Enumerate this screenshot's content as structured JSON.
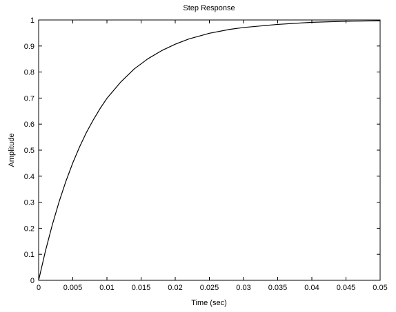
{
  "chart_data": {
    "type": "line",
    "title": "Step Response",
    "xlabel": "Time (sec)",
    "ylabel": "Amplitude",
    "xlim": [
      0,
      0.05
    ],
    "ylim": [
      0,
      1
    ],
    "x_ticks": [
      "0",
      "0.005",
      "0.01",
      "0.015",
      "0.02",
      "0.025",
      "0.03",
      "0.035",
      "0.04",
      "0.045",
      "0.05"
    ],
    "y_ticks": [
      "0",
      "0.1",
      "0.2",
      "0.3",
      "0.4",
      "0.5",
      "0.6",
      "0.7",
      "0.8",
      "0.9",
      "1"
    ],
    "grid": false,
    "legend": "none",
    "series": [
      {
        "color": "#000000",
        "x": [
          0,
          0.001,
          0.002,
          0.003,
          0.004,
          0.005,
          0.006,
          0.007,
          0.008,
          0.009,
          0.01,
          0.012,
          0.014,
          0.016,
          0.018,
          0.02,
          0.022,
          0.025,
          0.028,
          0.03,
          0.035,
          0.04,
          0.045,
          0.05
        ],
        "y": [
          0,
          0.113,
          0.213,
          0.302,
          0.381,
          0.451,
          0.513,
          0.568,
          0.616,
          0.66,
          0.699,
          0.761,
          0.812,
          0.851,
          0.882,
          0.907,
          0.927,
          0.949,
          0.964,
          0.971,
          0.983,
          0.991,
          0.995,
          0.997
        ]
      }
    ]
  }
}
